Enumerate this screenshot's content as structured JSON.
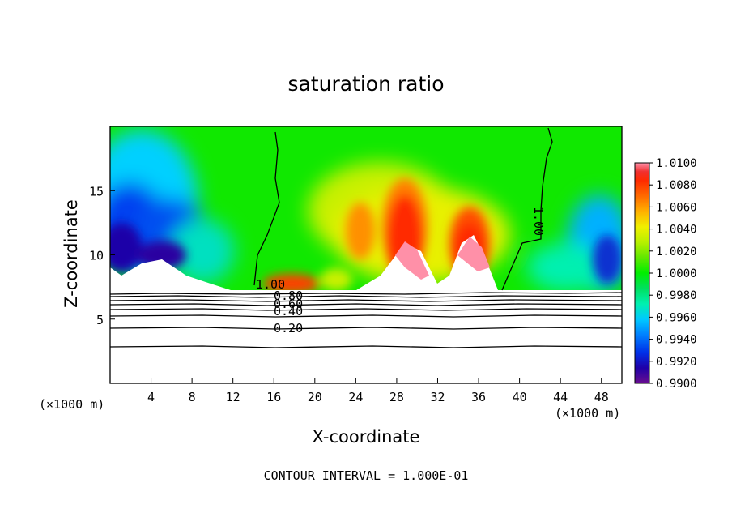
{
  "chart_data": {
    "type": "heatmap",
    "title": "saturation ratio",
    "xlabel": "X-coordinate",
    "ylabel": "Z-coordinate",
    "x_unit": "(×1000 m)",
    "y_unit": "(×1000 m)",
    "footer": "CONTOUR INTERVAL = 1.000E-01",
    "xlim": [
      0,
      50
    ],
    "ylim": [
      0,
      20
    ],
    "x_ticks": [
      "4",
      "8",
      "12",
      "16",
      "20",
      "24",
      "28",
      "32",
      "36",
      "40",
      "44",
      "48"
    ],
    "y_ticks": [
      "5",
      "10",
      "15"
    ],
    "colorbar": {
      "min": 0.99,
      "max": 1.01,
      "labels": [
        "1.0100",
        "1.0080",
        "1.0060",
        "1.0040",
        "1.0020",
        "1.0000",
        "0.9980",
        "0.9960",
        "0.9940",
        "0.9920",
        "0.9900"
      ],
      "colors": [
        "#6a0d8f",
        "#1f00a8",
        "#0030e8",
        "#0080ff",
        "#00c8ff",
        "#00f0b0",
        "#00e060",
        "#60e800",
        "#b8f000",
        "#f0f000",
        "#ffb000",
        "#ff6a00",
        "#ff2a00",
        "#f03030",
        "#ff90a8"
      ]
    },
    "contour_labels": [
      "1.00",
      "1.00",
      "0.80",
      "0.60",
      "0.40",
      "0.20"
    ],
    "contour_levels_below": [
      0.2,
      0.4,
      0.6,
      0.8,
      1.0
    ]
  }
}
